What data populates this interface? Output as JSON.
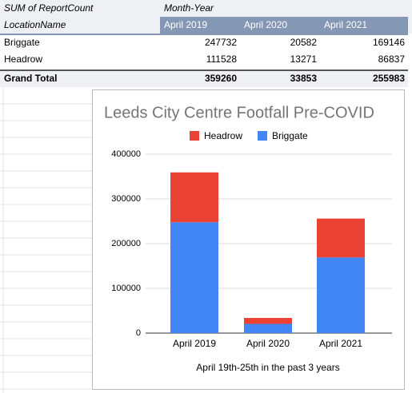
{
  "table": {
    "corner": "SUM of ReportCount",
    "column_group": "Month-Year",
    "row_header": "LocationName",
    "columns": [
      "April 2019",
      "April 2020",
      "April 2021"
    ],
    "rows": [
      [
        "Briggate",
        247732,
        20582,
        169146
      ],
      [
        "Headrow",
        111528,
        13271,
        86837
      ]
    ],
    "total": [
      "Grand Total",
      359260,
      33853,
      255983
    ]
  },
  "chart_data": {
    "type": "stacked-bar",
    "title": "Leeds City Centre Footfall Pre-COVID",
    "x_label": "April 19th-25th in the past 3 years",
    "categories": [
      "April 2019",
      "April 2020",
      "April 2021"
    ],
    "series": [
      {
        "name": "Headrow",
        "color": "#ea4335",
        "values": [
          111528,
          13271,
          86837
        ]
      },
      {
        "name": "Briggate",
        "color": "#4285f4",
        "values": [
          247732,
          20582,
          169146
        ]
      }
    ],
    "ylim": [
      0,
      400000
    ],
    "yticks": [
      0,
      100000,
      200000,
      300000,
      400000
    ],
    "grid": true,
    "legend": "top"
  }
}
